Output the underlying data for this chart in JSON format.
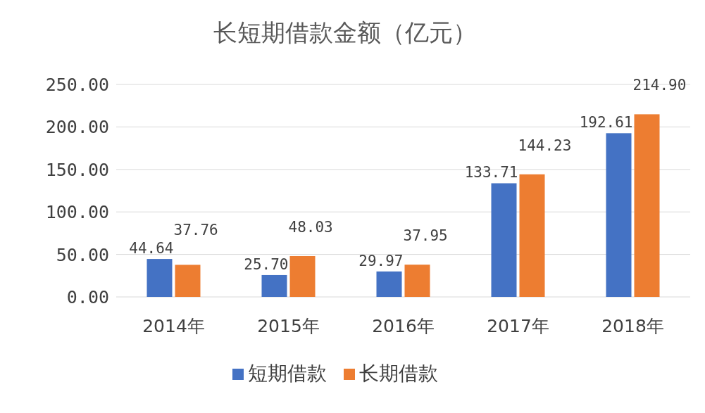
{
  "chart_data": {
    "type": "bar",
    "title": "长短期借款金额（亿元）",
    "categories": [
      "2014年",
      "2015年",
      "2016年",
      "2017年",
      "2018年"
    ],
    "series": [
      {
        "name": "短期借款",
        "color": "#4472c4",
        "values": [
          44.64,
          25.7,
          29.97,
          133.71,
          192.61
        ],
        "value_labels": [
          "44.64",
          "25.70",
          "29.97",
          "133.71",
          "192.61"
        ]
      },
      {
        "name": "长期借款",
        "color": "#ed7d31",
        "values": [
          37.76,
          48.03,
          37.95,
          144.23,
          214.9
        ],
        "value_labels": [
          "37.76",
          "48.03",
          "37.95",
          "144.23",
          "214.90"
        ]
      }
    ],
    "ylim": [
      0,
      250
    ],
    "yticks": [
      {
        "value": 0,
        "label": "0.00"
      },
      {
        "value": 50,
        "label": "50.00"
      },
      {
        "value": 100,
        "label": "100.00"
      },
      {
        "value": 150,
        "label": "150.00"
      },
      {
        "value": 200,
        "label": "200.00"
      },
      {
        "value": 250,
        "label": "250.00"
      }
    ],
    "grid": "y",
    "legend": "bottom"
  }
}
